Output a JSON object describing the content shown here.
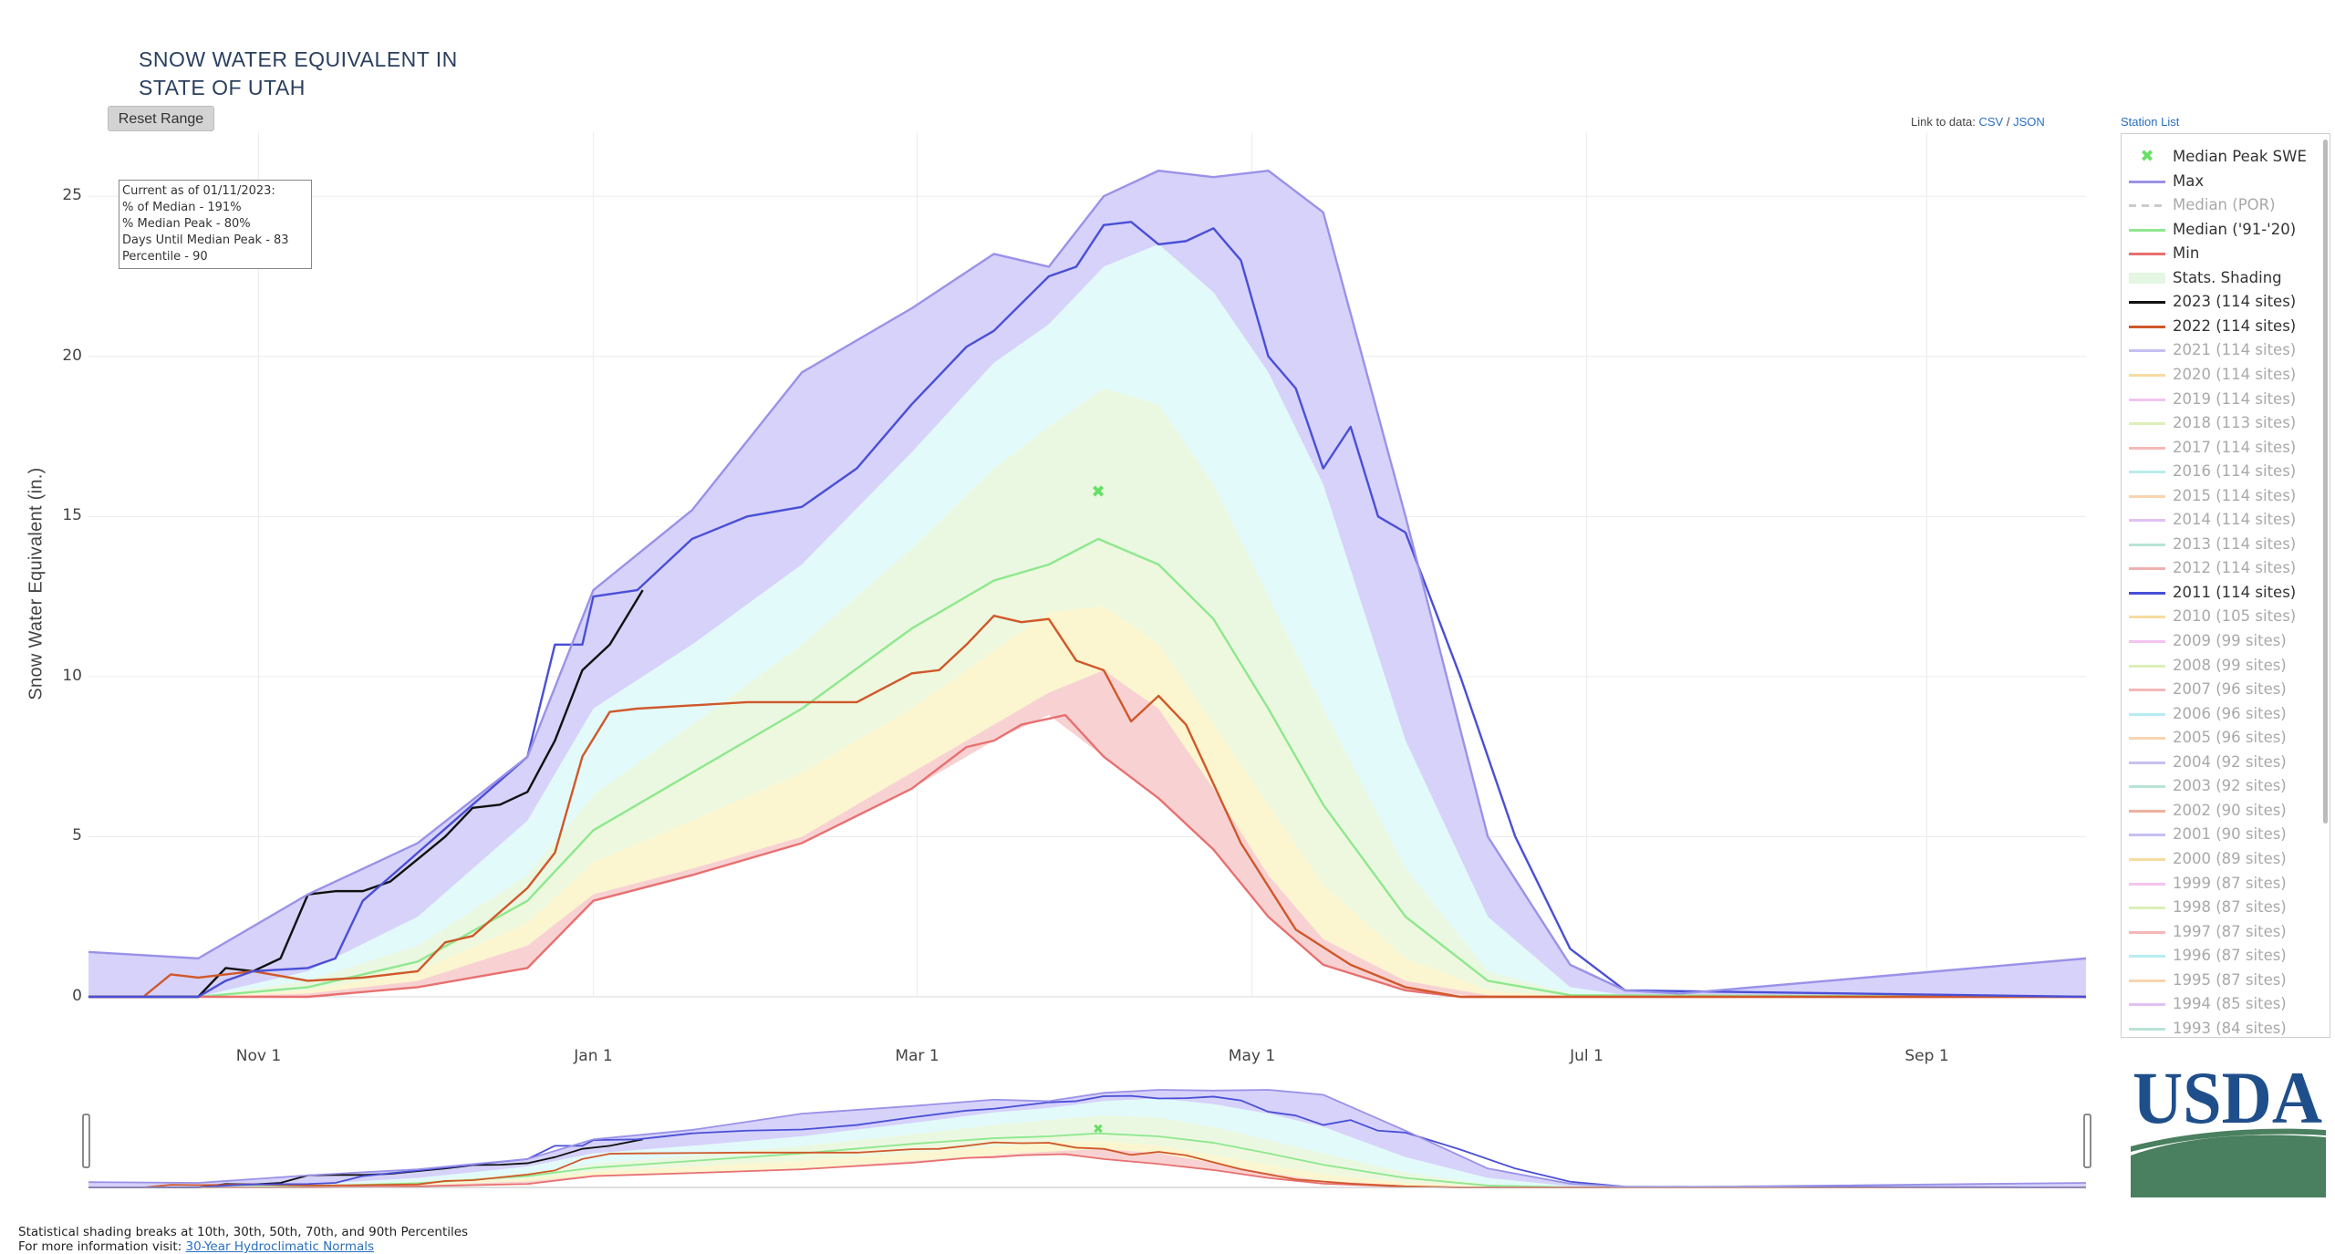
{
  "header": {
    "title_line1": "SNOW WATER EQUIVALENT IN",
    "title_line2": "STATE OF UTAH",
    "reset_label": "Reset Range"
  },
  "links": {
    "prefix": "Link to data:",
    "csv": "CSV",
    "sep": "/",
    "json": "JSON",
    "station_list": "Station List"
  },
  "info": {
    "line1": "Current as of 01/11/2023:",
    "line2": "% of Median - 191%",
    "line3": "% Median Peak - 80%",
    "line4": "Days Until Median Peak - 83",
    "line5": "Percentile - 90"
  },
  "footnote": {
    "line1": "Statistical shading breaks at 10th, 30th, 50th, 70th, and 90th Percentiles",
    "line2_prefix": "For more information visit:",
    "line2_link": "30-Year Hydroclimatic Normals"
  },
  "logo": {
    "text": "USDA",
    "color": "#1f4f8b",
    "green": "#4a7f5f"
  },
  "legend": [
    {
      "label": "Median Peak SWE",
      "color": "#66e066",
      "on": true,
      "marker": "x"
    },
    {
      "label": "Max",
      "color": "#9a92e8",
      "on": true
    },
    {
      "label": "Median (POR)",
      "color": "#cccccc",
      "on": false,
      "dash": true
    },
    {
      "label": "Median ('91-'20)",
      "color": "#8ee88e",
      "on": true
    },
    {
      "label": "Min",
      "color": "#e87070",
      "on": true
    },
    {
      "label": "Stats. Shading",
      "color": "#e3f7e3",
      "on": true,
      "thick": true
    },
    {
      "label": "2023 (114 sites)",
      "color": "#111111",
      "on": true
    },
    {
      "label": "2022 (114 sites)",
      "color": "#d0582a",
      "on": true
    },
    {
      "label": "2021 (114 sites)",
      "color": "#c4bff2",
      "on": false
    },
    {
      "label": "2020 (114 sites)",
      "color": "#f6dca0",
      "on": false
    },
    {
      "label": "2019 (114 sites)",
      "color": "#f3c4f0",
      "on": false
    },
    {
      "label": "2018 (113 sites)",
      "color": "#dcefb8",
      "on": false
    },
    {
      "label": "2017 (114 sites)",
      "color": "#f4b8b8",
      "on": false
    },
    {
      "label": "2016 (114 sites)",
      "color": "#b8ecec",
      "on": false
    },
    {
      "label": "2015 (114 sites)",
      "color": "#f8d4b0",
      "on": false
    },
    {
      "label": "2014 (114 sites)",
      "color": "#e0c0f4",
      "on": false
    },
    {
      "label": "2013 (114 sites)",
      "color": "#b8e4d4",
      "on": false
    },
    {
      "label": "2012 (114 sites)",
      "color": "#f0b0b0",
      "on": false
    },
    {
      "label": "2011 (114 sites)",
      "color": "#4a4fd6",
      "on": true
    },
    {
      "label": "2010 (105 sites)",
      "color": "#f6dca0",
      "on": false
    },
    {
      "label": "2009 (99 sites)",
      "color": "#f3c4f0",
      "on": false
    },
    {
      "label": "2008 (99 sites)",
      "color": "#dcefb8",
      "on": false
    },
    {
      "label": "2007 (96 sites)",
      "color": "#f4b8b8",
      "on": false
    },
    {
      "label": "2006 (96 sites)",
      "color": "#b8ecf4",
      "on": false
    },
    {
      "label": "2005 (96 sites)",
      "color": "#f8d4b0",
      "on": false
    },
    {
      "label": "2004 (92 sites)",
      "color": "#c8c0f0",
      "on": false
    },
    {
      "label": "2003 (92 sites)",
      "color": "#b8e4d4",
      "on": false
    },
    {
      "label": "2002 (90 sites)",
      "color": "#f0b0a0",
      "on": false
    },
    {
      "label": "2001 (90 sites)",
      "color": "#c4bff2",
      "on": false
    },
    {
      "label": "2000 (89 sites)",
      "color": "#f6dca0",
      "on": false
    },
    {
      "label": "1999 (87 sites)",
      "color": "#f3c4f0",
      "on": false
    },
    {
      "label": "1998 (87 sites)",
      "color": "#dcefb8",
      "on": false
    },
    {
      "label": "1997 (87 sites)",
      "color": "#f4b8b8",
      "on": false
    },
    {
      "label": "1996 (87 sites)",
      "color": "#b8ecf4",
      "on": false
    },
    {
      "label": "1995 (87 sites)",
      "color": "#f8d4b0",
      "on": false
    },
    {
      "label": "1994 (85 sites)",
      "color": "#e0c0f4",
      "on": false
    },
    {
      "label": "1993 (84 sites)",
      "color": "#b8e4d4",
      "on": false
    }
  ],
  "chart_data": {
    "type": "line",
    "title": "SNOW WATER EQUIVALENT IN STATE OF UTAH",
    "xlabel": "",
    "ylabel": "Snow Water Equivalent (in.)",
    "x_unit": "day of water year (Oct 1 = 0)",
    "xlim": [
      0,
      364
    ],
    "ylim": [
      0,
      27
    ],
    "grid": true,
    "x_ticks": [
      {
        "day": 31,
        "label": "Nov 1"
      },
      {
        "day": 92,
        "label": "Jan 1"
      },
      {
        "day": 151,
        "label": "Mar 1"
      },
      {
        "day": 212,
        "label": "May 1"
      },
      {
        "day": 273,
        "label": "Jul 1"
      },
      {
        "day": 335,
        "label": "Sep 1"
      }
    ],
    "y_ticks": [
      0,
      5,
      10,
      15,
      20,
      25
    ],
    "median_peak": {
      "day": 184,
      "value": 15.8
    },
    "bands": {
      "x": [
        0,
        20,
        40,
        60,
        80,
        92,
        110,
        130,
        150,
        165,
        175,
        185,
        195,
        205,
        215,
        225,
        240,
        255,
        270,
        280,
        290,
        364
      ],
      "max": [
        1.4,
        1.2,
        3.2,
        4.8,
        7.5,
        12.7,
        15.2,
        19.5,
        21.5,
        23.2,
        22.8,
        25.0,
        25.8,
        25.6,
        25.8,
        24.5,
        15.0,
        5.0,
        1.0,
        0.2,
        0.1,
        1.2
      ],
      "p90": [
        0.0,
        0.0,
        0.8,
        2.5,
        5.5,
        9.0,
        11.0,
        13.5,
        17.0,
        19.8,
        21.0,
        22.8,
        23.5,
        22.0,
        19.5,
        16.0,
        8.0,
        2.5,
        0.3,
        0.05,
        0.0,
        0.0
      ],
      "p70": [
        0.0,
        0.0,
        0.5,
        1.6,
        3.8,
        6.3,
        8.5,
        11.0,
        14.0,
        16.5,
        17.8,
        19.0,
        18.5,
        16.0,
        12.5,
        9.0,
        4.0,
        0.8,
        0.1,
        0.0,
        0.0,
        0.0
      ],
      "p50": [
        0.0,
        0.0,
        0.3,
        1.1,
        3.0,
        5.2,
        7.0,
        9.0,
        11.5,
        13.0,
        13.5,
        14.2,
        13.5,
        11.8,
        9.0,
        6.0,
        2.5,
        0.5,
        0.05,
        0.0,
        0.0,
        0.0
      ],
      "p30": [
        0.0,
        0.0,
        0.2,
        0.8,
        2.3,
        4.2,
        5.5,
        7.0,
        9.0,
        10.8,
        12.0,
        12.2,
        11.0,
        8.5,
        6.0,
        3.5,
        1.2,
        0.2,
        0.0,
        0.0,
        0.0,
        0.0
      ],
      "p10": [
        0.0,
        0.0,
        0.1,
        0.5,
        1.6,
        3.2,
        4.0,
        5.0,
        7.0,
        8.5,
        9.5,
        10.2,
        9.0,
        6.5,
        3.8,
        1.8,
        0.5,
        0.05,
        0.0,
        0.0,
        0.0,
        0.0
      ],
      "min": [
        0.0,
        0.0,
        0.0,
        0.3,
        0.9,
        3.0,
        3.8,
        4.8,
        6.5,
        8.0,
        8.8,
        7.5,
        6.2,
        4.6,
        2.5,
        1.0,
        0.2,
        0.0,
        0.0,
        0.0,
        0.0,
        0.0
      ]
    },
    "series": [
      {
        "name": "Median ('91-'20)",
        "color": "#8ee88e",
        "x": [
          0,
          20,
          40,
          60,
          80,
          92,
          110,
          130,
          150,
          165,
          175,
          184,
          195,
          205,
          215,
          225,
          240,
          255,
          270,
          364
        ],
        "values": [
          0.0,
          0.0,
          0.3,
          1.1,
          3.0,
          5.2,
          7.0,
          9.0,
          11.5,
          13.0,
          13.5,
          14.3,
          13.5,
          11.8,
          9.0,
          6.0,
          2.5,
          0.5,
          0.05,
          0.0
        ]
      },
      {
        "name": "Min",
        "color": "#e87070",
        "x": [
          0,
          20,
          40,
          60,
          70,
          80,
          92,
          110,
          130,
          150,
          160,
          165,
          170,
          178,
          185,
          195,
          205,
          215,
          225,
          240,
          250,
          364
        ],
        "values": [
          0.0,
          0.0,
          0.0,
          0.3,
          0.6,
          0.9,
          3.0,
          3.8,
          4.8,
          6.5,
          7.8,
          8.0,
          8.5,
          8.8,
          7.5,
          6.2,
          4.6,
          2.5,
          1.0,
          0.2,
          0.0,
          0.0
        ]
      },
      {
        "name": "2023 (114 sites)",
        "color": "#111111",
        "x": [
          0,
          20,
          25,
          30,
          35,
          40,
          45,
          50,
          55,
          60,
          65,
          70,
          75,
          80,
          85,
          90,
          95,
          101
        ],
        "values": [
          0.0,
          0.0,
          0.9,
          0.8,
          1.2,
          3.2,
          3.3,
          3.3,
          3.6,
          4.3,
          5.0,
          5.9,
          6.0,
          6.4,
          8.0,
          10.2,
          11.0,
          12.7
        ]
      },
      {
        "name": "2022 (114 sites)",
        "color": "#d0582a",
        "x": [
          0,
          10,
          15,
          20,
          30,
          40,
          50,
          60,
          65,
          70,
          80,
          85,
          90,
          95,
          100,
          110,
          120,
          130,
          140,
          150,
          155,
          160,
          165,
          170,
          175,
          180,
          185,
          190,
          195,
          200,
          210,
          220,
          230,
          240,
          250,
          364
        ],
        "values": [
          0.0,
          0.0,
          0.7,
          0.6,
          0.8,
          0.5,
          0.6,
          0.8,
          1.7,
          1.9,
          3.4,
          4.5,
          7.5,
          8.9,
          9.0,
          9.1,
          9.2,
          9.2,
          9.2,
          10.1,
          10.2,
          11.0,
          11.9,
          11.7,
          11.8,
          10.5,
          10.2,
          8.6,
          9.4,
          8.5,
          4.8,
          2.1,
          1.0,
          0.3,
          0.0,
          0.0
        ]
      },
      {
        "name": "2011 (114 sites)",
        "color": "#4a4fd6",
        "x": [
          0,
          20,
          25,
          30,
          40,
          45,
          50,
          60,
          70,
          80,
          85,
          90,
          92,
          100,
          110,
          120,
          130,
          140,
          150,
          160,
          165,
          175,
          180,
          185,
          190,
          195,
          200,
          205,
          210,
          215,
          220,
          225,
          230,
          235,
          240,
          250,
          260,
          270,
          280,
          364
        ],
        "values": [
          0.0,
          0.0,
          0.5,
          0.8,
          0.9,
          1.2,
          3.0,
          4.5,
          6.0,
          7.5,
          11.0,
          11.0,
          12.5,
          12.7,
          14.3,
          15.0,
          15.3,
          16.5,
          18.5,
          20.3,
          20.8,
          22.5,
          22.8,
          24.1,
          24.2,
          23.5,
          23.6,
          24.0,
          23.0,
          20.0,
          19.0,
          16.5,
          17.8,
          15.0,
          14.5,
          10.0,
          5.0,
          1.5,
          0.2,
          0.0
        ]
      },
      {
        "name": "Max",
        "color": "#9a92e8",
        "x": [
          0,
          20,
          40,
          60,
          80,
          92,
          110,
          130,
          150,
          165,
          175,
          185,
          195,
          205,
          215,
          225,
          240,
          255,
          270,
          280,
          290,
          364
        ],
        "values": [
          1.4,
          1.2,
          3.2,
          4.8,
          7.5,
          12.7,
          15.2,
          19.5,
          21.5,
          23.2,
          22.8,
          25.0,
          25.8,
          25.6,
          25.8,
          24.5,
          15.0,
          5.0,
          1.0,
          0.2,
          0.1,
          1.2
        ]
      }
    ]
  }
}
